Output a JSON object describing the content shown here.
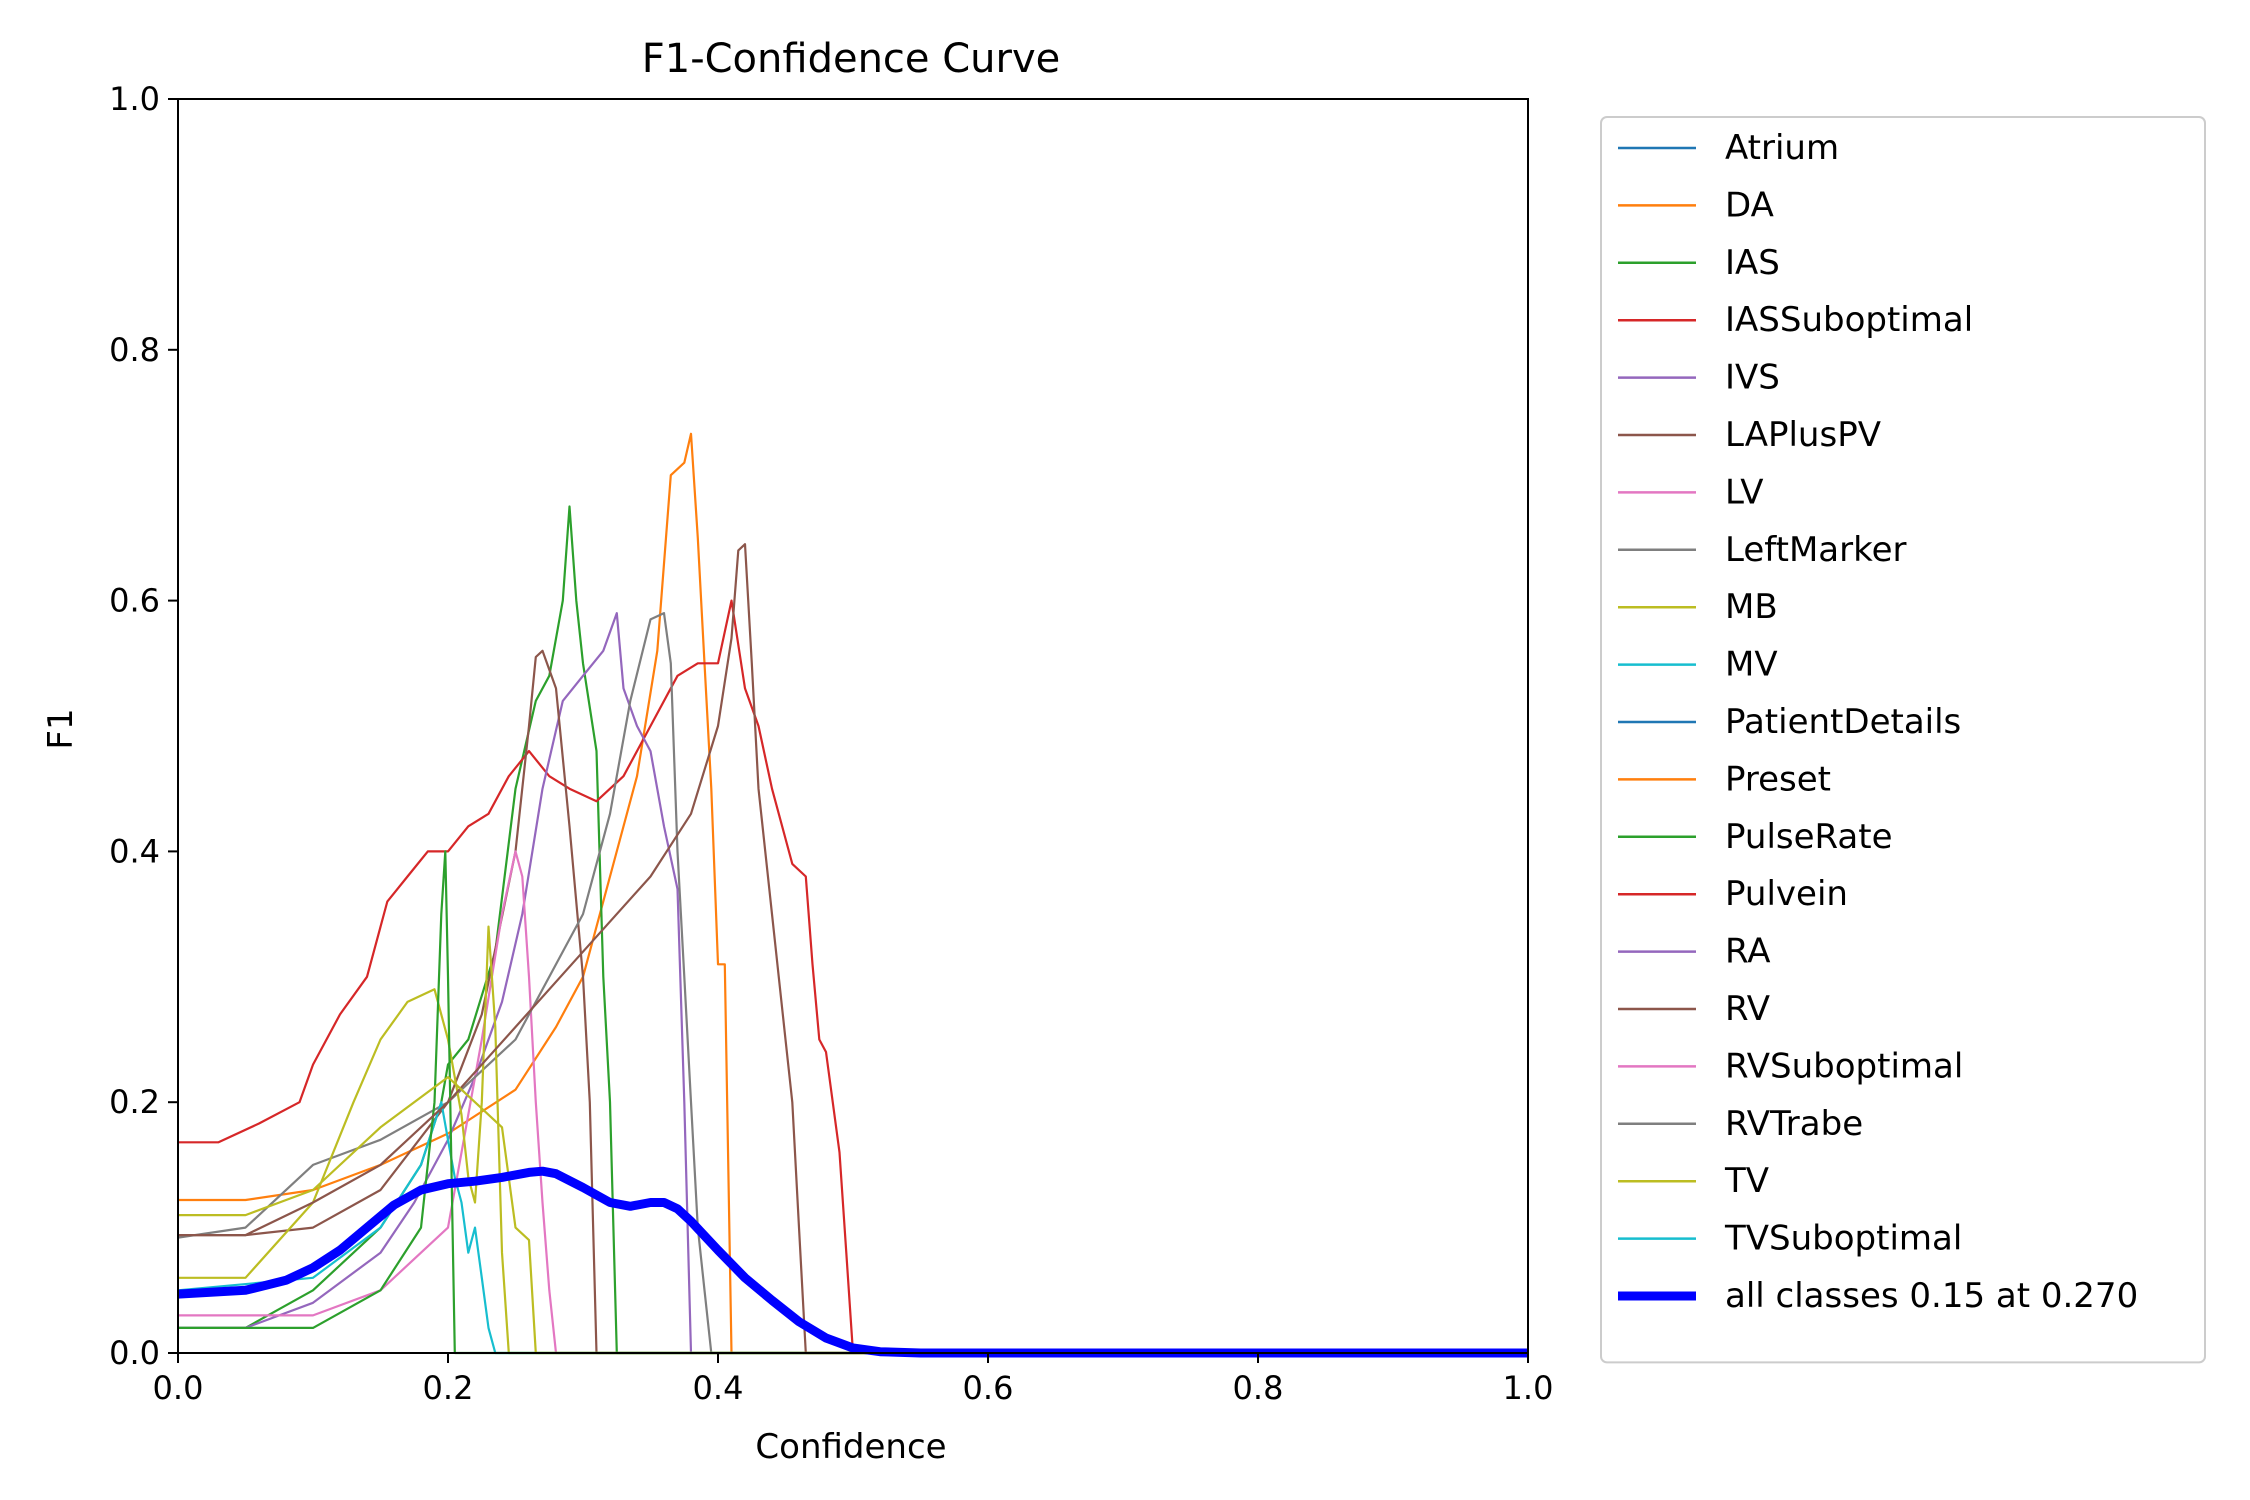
{
  "chart_data": {
    "type": "line",
    "title": "F1-Confidence Curve",
    "xlabel": "Confidence",
    "ylabel": "F1",
    "xlim": [
      0,
      1
    ],
    "ylim": [
      0,
      1
    ],
    "xticks": [
      "0.0",
      "0.2",
      "0.4",
      "0.6",
      "0.8",
      "1.0"
    ],
    "yticks": [
      "0.0",
      "0.2",
      "0.4",
      "0.6",
      "0.8",
      "1.0"
    ],
    "grid": false,
    "legend_position": "outside right",
    "series": [
      {
        "name": "Atrium",
        "color": "#1f77b4",
        "points": []
      },
      {
        "name": "DA",
        "color": "#ff7f0e",
        "points": [
          [
            0,
            0.122
          ],
          [
            0.05,
            0.122
          ],
          [
            0.1,
            0.13
          ],
          [
            0.15,
            0.15
          ],
          [
            0.2,
            0.175
          ],
          [
            0.25,
            0.21
          ],
          [
            0.28,
            0.26
          ],
          [
            0.3,
            0.3
          ],
          [
            0.32,
            0.38
          ],
          [
            0.34,
            0.46
          ],
          [
            0.355,
            0.56
          ],
          [
            0.365,
            0.7
          ],
          [
            0.375,
            0.71
          ],
          [
            0.38,
            0.733
          ],
          [
            0.385,
            0.65
          ],
          [
            0.39,
            0.55
          ],
          [
            0.395,
            0.45
          ],
          [
            0.4,
            0.31
          ],
          [
            0.405,
            0.31
          ],
          [
            0.41,
            0.0
          ],
          [
            1,
            0.0
          ]
        ]
      },
      {
        "name": "IAS",
        "color": "#2ca02c",
        "points": [
          [
            0,
            0.02
          ],
          [
            0.05,
            0.02
          ],
          [
            0.1,
            0.05
          ],
          [
            0.15,
            0.1
          ],
          [
            0.18,
            0.15
          ],
          [
            0.195,
            0.2
          ],
          [
            0.2,
            0.23
          ],
          [
            0.215,
            0.25
          ],
          [
            0.235,
            0.32
          ],
          [
            0.25,
            0.45
          ],
          [
            0.265,
            0.52
          ],
          [
            0.275,
            0.54
          ],
          [
            0.285,
            0.6
          ],
          [
            0.29,
            0.675
          ],
          [
            0.295,
            0.6
          ],
          [
            0.3,
            0.55
          ],
          [
            0.31,
            0.48
          ],
          [
            0.315,
            0.3
          ],
          [
            0.32,
            0.2
          ],
          [
            0.325,
            0.0
          ],
          [
            1,
            0.0
          ]
        ]
      },
      {
        "name": "IASSuboptimal",
        "color": "#d62728",
        "points": [
          [
            0,
            0.168
          ],
          [
            0.03,
            0.168
          ],
          [
            0.06,
            0.183
          ],
          [
            0.09,
            0.2
          ],
          [
            0.1,
            0.23
          ],
          [
            0.12,
            0.27
          ],
          [
            0.14,
            0.3
          ],
          [
            0.155,
            0.36
          ],
          [
            0.17,
            0.38
          ],
          [
            0.185,
            0.4
          ],
          [
            0.2,
            0.4
          ],
          [
            0.215,
            0.42
          ],
          [
            0.23,
            0.43
          ],
          [
            0.245,
            0.46
          ],
          [
            0.26,
            0.48
          ],
          [
            0.275,
            0.46
          ],
          [
            0.29,
            0.45
          ],
          [
            0.31,
            0.44
          ],
          [
            0.33,
            0.46
          ],
          [
            0.35,
            0.5
          ],
          [
            0.37,
            0.54
          ],
          [
            0.385,
            0.55
          ],
          [
            0.4,
            0.55
          ],
          [
            0.41,
            0.6
          ],
          [
            0.42,
            0.53
          ],
          [
            0.43,
            0.5
          ],
          [
            0.44,
            0.45
          ],
          [
            0.455,
            0.39
          ],
          [
            0.465,
            0.38
          ],
          [
            0.47,
            0.31
          ],
          [
            0.475,
            0.25
          ],
          [
            0.48,
            0.24
          ],
          [
            0.49,
            0.16
          ],
          [
            0.495,
            0.08
          ],
          [
            0.5,
            0.0
          ],
          [
            1,
            0.0
          ]
        ]
      },
      {
        "name": "IVS",
        "color": "#9467bd",
        "points": [
          [
            0,
            0.02
          ],
          [
            0.05,
            0.02
          ],
          [
            0.1,
            0.04
          ],
          [
            0.15,
            0.08
          ],
          [
            0.175,
            0.12
          ],
          [
            0.2,
            0.17
          ],
          [
            0.22,
            0.22
          ],
          [
            0.24,
            0.28
          ],
          [
            0.255,
            0.35
          ],
          [
            0.27,
            0.45
          ],
          [
            0.285,
            0.52
          ],
          [
            0.3,
            0.54
          ],
          [
            0.315,
            0.56
          ],
          [
            0.325,
            0.59
          ],
          [
            0.33,
            0.53
          ],
          [
            0.34,
            0.5
          ],
          [
            0.35,
            0.48
          ],
          [
            0.36,
            0.42
          ],
          [
            0.37,
            0.37
          ],
          [
            0.375,
            0.2
          ],
          [
            0.38,
            0.0
          ],
          [
            1,
            0.0
          ]
        ]
      },
      {
        "name": "LAPlusPV",
        "color": "#8c564b",
        "points": [
          [
            0,
            0.094
          ],
          [
            0.05,
            0.094
          ],
          [
            0.1,
            0.1
          ],
          [
            0.15,
            0.13
          ],
          [
            0.2,
            0.2
          ],
          [
            0.225,
            0.27
          ],
          [
            0.25,
            0.4
          ],
          [
            0.26,
            0.5
          ],
          [
            0.265,
            0.555
          ],
          [
            0.27,
            0.56
          ],
          [
            0.28,
            0.53
          ],
          [
            0.29,
            0.42
          ],
          [
            0.3,
            0.3
          ],
          [
            0.305,
            0.2
          ],
          [
            0.31,
            0.0
          ],
          [
            1,
            0.0
          ]
        ]
      },
      {
        "name": "LV",
        "color": "#e377c2",
        "points": [
          [
            0,
            0.03
          ],
          [
            0.1,
            0.03
          ],
          [
            0.15,
            0.05
          ],
          [
            0.2,
            0.1
          ],
          [
            0.225,
            0.25
          ],
          [
            0.24,
            0.35
          ],
          [
            0.25,
            0.4
          ],
          [
            0.255,
            0.38
          ],
          [
            0.26,
            0.3
          ],
          [
            0.265,
            0.2
          ],
          [
            0.27,
            0.12
          ],
          [
            0.275,
            0.05
          ],
          [
            0.28,
            0.0
          ],
          [
            1,
            0.0
          ]
        ]
      },
      {
        "name": "LeftMarker",
        "color": "#7f7f7f",
        "points": [
          [
            0,
            0.092
          ],
          [
            0.05,
            0.1
          ],
          [
            0.1,
            0.15
          ],
          [
            0.15,
            0.17
          ],
          [
            0.2,
            0.2
          ],
          [
            0.25,
            0.25
          ],
          [
            0.3,
            0.35
          ],
          [
            0.32,
            0.43
          ],
          [
            0.335,
            0.52
          ],
          [
            0.35,
            0.585
          ],
          [
            0.36,
            0.59
          ],
          [
            0.365,
            0.55
          ],
          [
            0.37,
            0.4
          ],
          [
            0.375,
            0.3
          ],
          [
            0.38,
            0.2
          ],
          [
            0.385,
            0.1
          ],
          [
            0.39,
            0.05
          ],
          [
            0.395,
            0.0
          ],
          [
            1,
            0.0
          ]
        ]
      },
      {
        "name": "MB",
        "color": "#bcbd22",
        "points": [
          [
            0,
            0.06
          ],
          [
            0.05,
            0.06
          ],
          [
            0.1,
            0.12
          ],
          [
            0.13,
            0.2
          ],
          [
            0.15,
            0.25
          ],
          [
            0.17,
            0.28
          ],
          [
            0.19,
            0.29
          ],
          [
            0.2,
            0.25
          ],
          [
            0.21,
            0.19
          ],
          [
            0.215,
            0.14
          ],
          [
            0.22,
            0.12
          ],
          [
            0.225,
            0.2
          ],
          [
            0.23,
            0.34
          ],
          [
            0.235,
            0.26
          ],
          [
            0.24,
            0.08
          ],
          [
            0.245,
            0.0
          ],
          [
            1,
            0.0
          ]
        ]
      },
      {
        "name": "MV",
        "color": "#17becf",
        "points": [
          [
            0,
            0.05
          ],
          [
            0.1,
            0.06
          ],
          [
            0.15,
            0.1
          ],
          [
            0.18,
            0.15
          ],
          [
            0.195,
            0.2
          ],
          [
            0.2,
            0.17
          ],
          [
            0.205,
            0.14
          ],
          [
            0.21,
            0.12
          ],
          [
            0.215,
            0.08
          ],
          [
            0.22,
            0.1
          ],
          [
            0.225,
            0.06
          ],
          [
            0.23,
            0.02
          ],
          [
            0.235,
            0.0
          ],
          [
            1,
            0.0
          ]
        ]
      },
      {
        "name": "PatientDetails",
        "color": "#1f77b4",
        "points": []
      },
      {
        "name": "Preset",
        "color": "#ff7f0e",
        "points": []
      },
      {
        "name": "PulseRate",
        "color": "#2ca02c",
        "points": [
          [
            0,
            0.02
          ],
          [
            0.1,
            0.02
          ],
          [
            0.15,
            0.05
          ],
          [
            0.18,
            0.1
          ],
          [
            0.19,
            0.2
          ],
          [
            0.195,
            0.35
          ],
          [
            0.198,
            0.4
          ],
          [
            0.2,
            0.3
          ],
          [
            0.205,
            0.0
          ],
          [
            1,
            0.0
          ]
        ]
      },
      {
        "name": "Pulvein",
        "color": "#d62728",
        "points": []
      },
      {
        "name": "RA",
        "color": "#9467bd",
        "points": []
      },
      {
        "name": "RV",
        "color": "#8c564b",
        "points": [
          [
            0,
            0.094
          ],
          [
            0.05,
            0.094
          ],
          [
            0.1,
            0.12
          ],
          [
            0.15,
            0.15
          ],
          [
            0.2,
            0.2
          ],
          [
            0.25,
            0.26
          ],
          [
            0.3,
            0.32
          ],
          [
            0.35,
            0.38
          ],
          [
            0.38,
            0.43
          ],
          [
            0.4,
            0.5
          ],
          [
            0.41,
            0.57
          ],
          [
            0.415,
            0.64
          ],
          [
            0.42,
            0.645
          ],
          [
            0.425,
            0.55
          ],
          [
            0.43,
            0.45
          ],
          [
            0.44,
            0.35
          ],
          [
            0.45,
            0.25
          ],
          [
            0.455,
            0.2
          ],
          [
            0.46,
            0.1
          ],
          [
            0.465,
            0.0
          ],
          [
            1,
            0.0
          ]
        ]
      },
      {
        "name": "RVSuboptimal",
        "color": "#e377c2",
        "points": []
      },
      {
        "name": "RVTrabe",
        "color": "#7f7f7f",
        "points": []
      },
      {
        "name": "TV",
        "color": "#bcbd22",
        "points": [
          [
            0,
            0.11
          ],
          [
            0.05,
            0.11
          ],
          [
            0.1,
            0.13
          ],
          [
            0.15,
            0.18
          ],
          [
            0.2,
            0.22
          ],
          [
            0.22,
            0.2
          ],
          [
            0.24,
            0.18
          ],
          [
            0.25,
            0.1
          ],
          [
            0.26,
            0.09
          ],
          [
            0.265,
            0.0
          ],
          [
            1,
            0.0
          ]
        ]
      },
      {
        "name": "TVSuboptimal",
        "color": "#17becf",
        "points": []
      },
      {
        "name": "all classes 0.15 at 0.270",
        "color": "#0000ff",
        "bold": true,
        "points": [
          [
            0,
            0.047
          ],
          [
            0.05,
            0.05
          ],
          [
            0.08,
            0.058
          ],
          [
            0.1,
            0.068
          ],
          [
            0.12,
            0.082
          ],
          [
            0.14,
            0.1
          ],
          [
            0.16,
            0.118
          ],
          [
            0.18,
            0.13
          ],
          [
            0.2,
            0.135
          ],
          [
            0.22,
            0.137
          ],
          [
            0.24,
            0.14
          ],
          [
            0.26,
            0.144
          ],
          [
            0.27,
            0.145
          ],
          [
            0.28,
            0.143
          ],
          [
            0.3,
            0.132
          ],
          [
            0.32,
            0.12
          ],
          [
            0.335,
            0.117
          ],
          [
            0.35,
            0.12
          ],
          [
            0.36,
            0.12
          ],
          [
            0.37,
            0.115
          ],
          [
            0.38,
            0.105
          ],
          [
            0.4,
            0.082
          ],
          [
            0.42,
            0.06
          ],
          [
            0.44,
            0.042
          ],
          [
            0.46,
            0.025
          ],
          [
            0.48,
            0.012
          ],
          [
            0.5,
            0.004
          ],
          [
            0.52,
            0.001
          ],
          [
            0.55,
            0.0
          ],
          [
            1,
            0.0
          ]
        ]
      }
    ]
  }
}
